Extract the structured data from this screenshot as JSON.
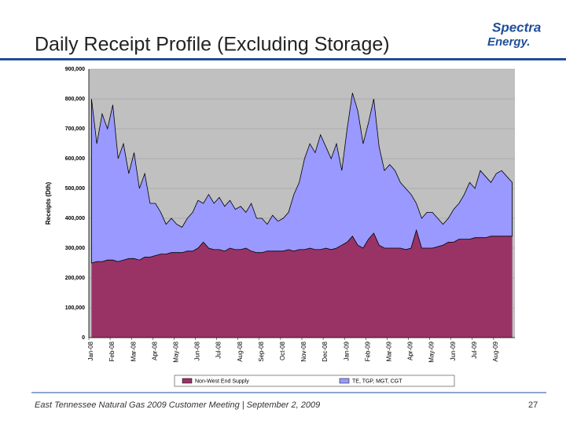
{
  "header": {
    "title": "Daily Receipt Profile (Excluding Storage)",
    "logo_top": "Spectra",
    "logo_bottom": "Energy."
  },
  "chart_data": {
    "type": "stacked_area",
    "y_label": "Receipts (Dth)",
    "categories": [
      "Jan-08",
      null,
      null,
      null,
      "Feb-08",
      null,
      null,
      null,
      "Mar-08",
      null,
      null,
      null,
      "Apr-08",
      null,
      null,
      null,
      "May-08",
      null,
      null,
      null,
      "Jun-08",
      null,
      null,
      null,
      "Jul-08",
      null,
      null,
      null,
      "Aug-08",
      null,
      null,
      null,
      "Sep-08",
      null,
      null,
      null,
      "Oct-08",
      null,
      null,
      null,
      "Nov-08",
      null,
      null,
      null,
      "Dec-08",
      null,
      null,
      null,
      "Jan-09",
      null,
      null,
      null,
      "Feb-09",
      null,
      null,
      null,
      "Mar-09",
      null,
      null,
      null,
      "Apr-09",
      null,
      null,
      null,
      "May-09",
      null,
      null,
      null,
      "Jun-09",
      null,
      null,
      null,
      "Jul-09",
      null,
      null,
      null,
      "Aug-09",
      null,
      null,
      null
    ],
    "series": [
      {
        "name": "Non-West End Supply",
        "color": "#993366",
        "values": [
          250000,
          255000,
          255000,
          260000,
          260000,
          255000,
          260000,
          265000,
          265000,
          260000,
          270000,
          270000,
          275000,
          280000,
          280000,
          285000,
          285000,
          285000,
          290000,
          290000,
          300000,
          320000,
          300000,
          295000,
          295000,
          290000,
          300000,
          295000,
          295000,
          300000,
          290000,
          285000,
          285000,
          290000,
          290000,
          290000,
          290000,
          295000,
          290000,
          295000,
          295000,
          300000,
          295000,
          295000,
          300000,
          295000,
          300000,
          310000,
          320000,
          340000,
          310000,
          300000,
          330000,
          350000,
          310000,
          300000,
          300000,
          300000,
          300000,
          295000,
          300000,
          360000,
          300000,
          300000,
          300000,
          305000,
          310000,
          320000,
          320000,
          330000,
          330000,
          330000,
          335000,
          335000,
          335000,
          340000,
          340000,
          340000,
          340000,
          340000
        ]
      },
      {
        "name": "TE, TGP, MGT, CGT",
        "color": "#9999ff",
        "values": [
          550000,
          395000,
          495000,
          440000,
          520000,
          345000,
          390000,
          285000,
          355000,
          240000,
          280000,
          180000,
          175000,
          140000,
          100000,
          115000,
          95000,
          85000,
          110000,
          130000,
          160000,
          130000,
          180000,
          155000,
          175000,
          150000,
          160000,
          135000,
          145000,
          120000,
          160000,
          115000,
          115000,
          90000,
          120000,
          100000,
          110000,
          125000,
          190000,
          225000,
          305000,
          350000,
          325000,
          385000,
          340000,
          305000,
          350000,
          250000,
          380000,
          480000,
          450000,
          350000,
          390000,
          450000,
          330000,
          260000,
          280000,
          260000,
          220000,
          205000,
          180000,
          90000,
          100000,
          120000,
          120000,
          95000,
          70000,
          80000,
          110000,
          120000,
          150000,
          190000,
          165000,
          225000,
          205000,
          180000,
          210000,
          220000,
          200000,
          180000
        ]
      }
    ],
    "ylim": [
      0,
      900000
    ],
    "yticks": [
      0,
      {
        "value": 100000,
        "label": "100,000"
      },
      {
        "value": 200000,
        "label": "200,000"
      },
      {
        "value": 300000,
        "label": "300,000"
      },
      {
        "value": 400000,
        "label": "400,000"
      },
      {
        "value": 500000,
        "label": "500,000"
      },
      {
        "value": 600000,
        "label": "600,000"
      },
      {
        "value": 700000,
        "label": "700,000"
      },
      {
        "value": 800000,
        "label": "800,000"
      },
      {
        "value": 900000,
        "label": "900,000"
      }
    ],
    "grid": true
  },
  "footer": {
    "text": "East Tennessee Natural Gas 2009 Customer Meeting | September 2, 2009",
    "page": "27"
  }
}
